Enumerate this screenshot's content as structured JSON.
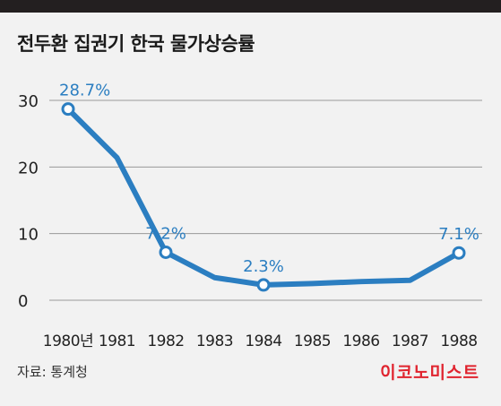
{
  "header": {
    "title": "전두환 집권기 한국 물가상승률"
  },
  "footer": {
    "source": "자료: 통계청",
    "brand": "이코노미스트"
  },
  "colors": {
    "line": "#2b7ec1",
    "label": "#2b7ec1",
    "grid": "#999999",
    "brand": "#e0242f"
  },
  "chart_data": {
    "type": "line",
    "title": "전두환 집권기 한국 물가상승률",
    "x_tick_labels": [
      "1980년",
      "1981",
      "1982",
      "1983",
      "1984",
      "1985",
      "1986",
      "1987",
      "1988"
    ],
    "x": [
      1980,
      1981,
      1982,
      1983,
      1984,
      1985,
      1986,
      1987,
      1988
    ],
    "values": [
      28.7,
      21.4,
      7.2,
      3.4,
      2.3,
      2.5,
      2.8,
      3.0,
      7.1
    ],
    "y_ticks": [
      0,
      10,
      20,
      30
    ],
    "ylim": [
      0,
      30
    ],
    "grid": true,
    "data_labels": [
      {
        "index": 0,
        "text": "28.7%"
      },
      {
        "index": 2,
        "text": "7.2%"
      },
      {
        "index": 4,
        "text": "2.3%"
      },
      {
        "index": 8,
        "text": "7.1%"
      }
    ]
  }
}
